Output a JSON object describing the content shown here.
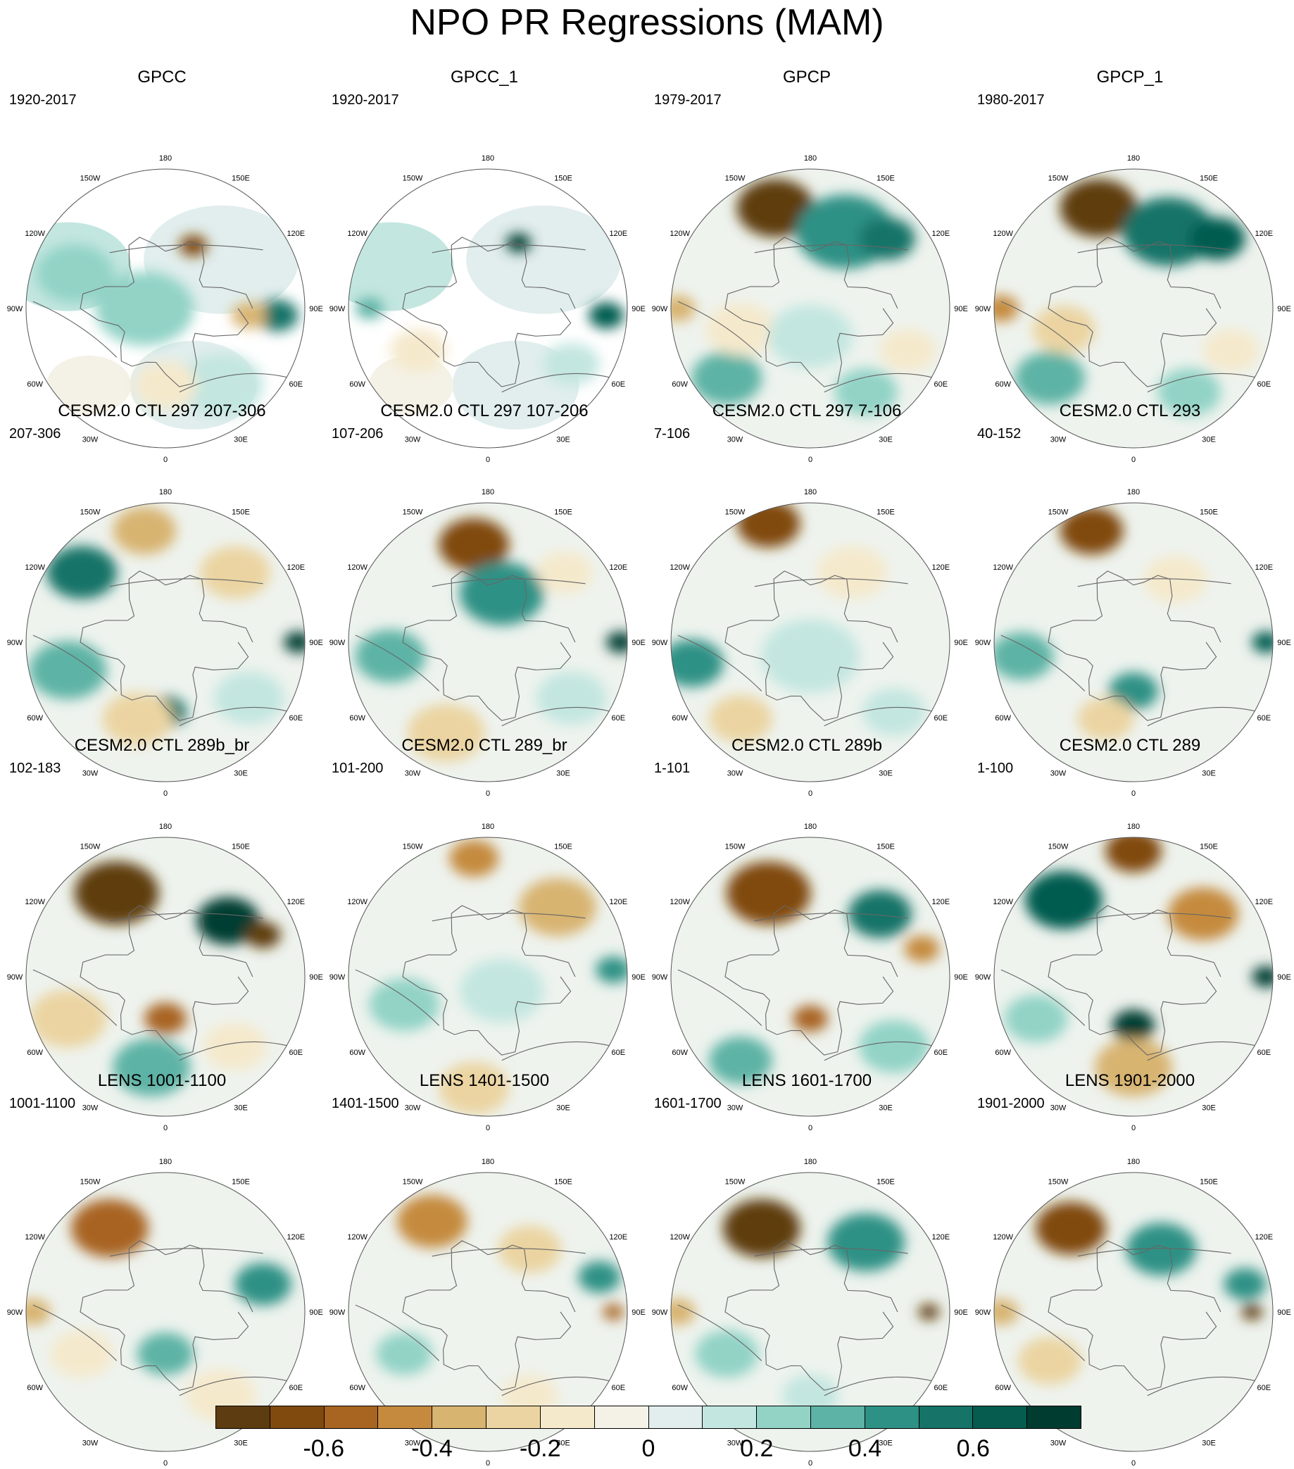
{
  "title": "NPO PR Regressions (MAM)",
  "lon_labels": [
    "180",
    "150E",
    "120E",
    "90E",
    "60E",
    "30E",
    "0",
    "30W",
    "60W",
    "90W",
    "120W",
    "150W"
  ],
  "panels": [
    {
      "title": "GPCC",
      "period": "1920-2017",
      "mask": true,
      "blobs": [
        [
          0.2,
          -0.45,
          20,
          -0.7
        ],
        [
          -0.15,
          0.0,
          70,
          0.25
        ],
        [
          -0.65,
          -0.25,
          55,
          0.2
        ],
        [
          0.8,
          0.05,
          30,
          0.5
        ],
        [
          0.6,
          0.05,
          25,
          -0.35
        ],
        [
          0.4,
          0.55,
          60,
          0.15
        ],
        [
          0.0,
          0.55,
          45,
          -0.15
        ]
      ]
    },
    {
      "title": "GPCC_1",
      "period": "1920-2017",
      "mask": true,
      "blobs": [
        [
          0.22,
          -0.47,
          18,
          0.75
        ],
        [
          0.85,
          0.05,
          25,
          0.6
        ],
        [
          -0.85,
          0.0,
          20,
          0.3
        ],
        [
          0.6,
          0.4,
          40,
          0.15
        ],
        [
          -0.5,
          0.3,
          40,
          -0.15
        ]
      ]
    },
    {
      "title": "GPCP",
      "period": "1979-2017",
      "mask": false,
      "blobs": [
        [
          -0.25,
          -0.72,
          55,
          -0.75
        ],
        [
          0.25,
          -0.55,
          70,
          0.45
        ],
        [
          0.55,
          -0.5,
          40,
          0.55
        ],
        [
          -0.6,
          0.5,
          50,
          0.3
        ],
        [
          -0.95,
          0.0,
          25,
          -0.4
        ],
        [
          -0.5,
          0.15,
          50,
          -0.2
        ],
        [
          0.4,
          0.6,
          45,
          0.2
        ],
        [
          0.7,
          0.3,
          40,
          -0.15
        ],
        [
          0.0,
          0.2,
          60,
          0.15
        ]
      ]
    },
    {
      "title": "GPCP_1",
      "period": "1980-2017",
      "mask": false,
      "blobs": [
        [
          -0.25,
          -0.72,
          55,
          -0.8
        ],
        [
          0.25,
          -0.55,
          65,
          0.5
        ],
        [
          0.6,
          -0.5,
          40,
          0.65
        ],
        [
          -0.6,
          0.5,
          50,
          0.3
        ],
        [
          -0.95,
          0.0,
          25,
          -0.45
        ],
        [
          -0.5,
          0.15,
          45,
          -0.25
        ],
        [
          0.4,
          0.6,
          45,
          0.2
        ],
        [
          0.7,
          0.3,
          40,
          -0.15
        ]
      ]
    },
    {
      "title": "CESM2.0 CTL 297 207-306",
      "period": "207-306",
      "mask": false,
      "blobs": [
        [
          -0.6,
          -0.5,
          50,
          0.55
        ],
        [
          -0.15,
          -0.8,
          45,
          -0.4
        ],
        [
          0.5,
          -0.5,
          50,
          -0.3
        ],
        [
          0.95,
          0.0,
          20,
          0.7
        ],
        [
          0.0,
          0.5,
          30,
          0.5
        ],
        [
          -0.2,
          0.55,
          50,
          -0.3
        ],
        [
          -0.7,
          0.2,
          55,
          0.3
        ],
        [
          0.6,
          0.4,
          50,
          0.15
        ]
      ]
    },
    {
      "title": "CESM2.0 CTL 297 107-206",
      "period": "107-206",
      "mask": false,
      "blobs": [
        [
          -0.1,
          -0.7,
          50,
          -0.65
        ],
        [
          0.1,
          -0.35,
          60,
          0.45
        ],
        [
          0.95,
          0.0,
          20,
          0.75
        ],
        [
          -0.3,
          0.65,
          55,
          -0.3
        ],
        [
          -0.7,
          0.1,
          50,
          0.3
        ],
        [
          0.6,
          0.4,
          50,
          0.15
        ],
        [
          0.55,
          -0.5,
          40,
          -0.2
        ]
      ]
    },
    {
      "title": "CESM2.0 CTL 297 7-106",
      "period": "7-106",
      "mask": false,
      "blobs": [
        [
          -0.3,
          -0.85,
          45,
          -0.65
        ],
        [
          0.3,
          -0.5,
          50,
          -0.2
        ],
        [
          -0.85,
          0.15,
          45,
          0.4
        ],
        [
          -0.5,
          0.55,
          45,
          -0.25
        ],
        [
          0.0,
          0.1,
          70,
          0.15
        ],
        [
          0.6,
          0.5,
          45,
          0.15
        ]
      ]
    },
    {
      "title": "CESM2.0 CTL 293",
      "period": "40-152",
      "mask": false,
      "blobs": [
        [
          -0.3,
          -0.8,
          45,
          -0.7
        ],
        [
          0.95,
          0.0,
          20,
          0.65
        ],
        [
          -0.8,
          0.1,
          45,
          0.35
        ],
        [
          0.0,
          0.35,
          35,
          0.45
        ],
        [
          0.3,
          -0.45,
          45,
          -0.2
        ],
        [
          -0.2,
          0.55,
          40,
          -0.25
        ]
      ]
    },
    {
      "title": "CESM2.0 CTL 289b_br",
      "period": "102-183",
      "mask": false,
      "blobs": [
        [
          -0.35,
          -0.6,
          60,
          -0.75
        ],
        [
          0.45,
          -0.4,
          45,
          0.75
        ],
        [
          0.7,
          -0.3,
          25,
          -0.8
        ],
        [
          0.0,
          0.3,
          30,
          -0.55
        ],
        [
          -0.7,
          0.3,
          55,
          -0.25
        ],
        [
          -0.1,
          0.65,
          55,
          0.35
        ],
        [
          0.5,
          0.5,
          45,
          -0.15
        ]
      ]
    },
    {
      "title": "CESM2.0 CTL 289_br",
      "period": "101-200",
      "mask": false,
      "blobs": [
        [
          -0.1,
          -0.85,
          35,
          -0.5
        ],
        [
          0.5,
          -0.5,
          55,
          -0.35
        ],
        [
          -0.1,
          0.8,
          50,
          -0.3
        ],
        [
          -0.6,
          0.2,
          50,
          0.25
        ],
        [
          0.9,
          -0.05,
          25,
          0.45
        ],
        [
          0.1,
          0.1,
          60,
          0.15
        ]
      ]
    },
    {
      "title": "CESM2.0 CTL 289b",
      "period": "1-101",
      "mask": false,
      "blobs": [
        [
          -0.3,
          -0.6,
          60,
          -0.7
        ],
        [
          0.5,
          -0.45,
          45,
          0.55
        ],
        [
          0.8,
          -0.2,
          25,
          -0.45
        ],
        [
          0.0,
          0.3,
          25,
          -0.6
        ],
        [
          -0.5,
          0.6,
          45,
          0.35
        ],
        [
          0.6,
          0.5,
          50,
          0.2
        ]
      ]
    },
    {
      "title": "CESM2.0 CTL 289",
      "period": "1-100",
      "mask": false,
      "blobs": [
        [
          -0.5,
          -0.55,
          55,
          0.6
        ],
        [
          0.0,
          -0.9,
          40,
          -0.7
        ],
        [
          0.5,
          -0.45,
          50,
          -0.5
        ],
        [
          0.95,
          0.0,
          20,
          0.8
        ],
        [
          0.0,
          0.35,
          30,
          0.75
        ],
        [
          0.0,
          0.65,
          55,
          -0.35
        ],
        [
          -0.7,
          0.3,
          45,
          0.2
        ]
      ]
    },
    {
      "title": "LENS 1001-1100",
      "period": "1001-1100",
      "mask": false,
      "blobs": [
        [
          -0.4,
          -0.6,
          55,
          -0.55
        ],
        [
          0.7,
          -0.2,
          40,
          0.4
        ],
        [
          -0.95,
          0.0,
          25,
          -0.35
        ],
        [
          -0.6,
          0.3,
          45,
          -0.2
        ],
        [
          0.0,
          0.3,
          40,
          0.3
        ],
        [
          0.4,
          0.6,
          50,
          -0.15
        ]
      ]
    },
    {
      "title": "LENS 1401-1500",
      "period": "1401-1500",
      "mask": false,
      "blobs": [
        [
          -0.4,
          -0.65,
          50,
          -0.5
        ],
        [
          0.3,
          -0.45,
          45,
          -0.25
        ],
        [
          0.8,
          -0.25,
          30,
          0.45
        ],
        [
          0.9,
          0.0,
          15,
          -0.6
        ],
        [
          -0.6,
          0.3,
          40,
          0.2
        ],
        [
          0.3,
          0.6,
          40,
          -0.15
        ]
      ]
    },
    {
      "title": "LENS 1601-1700",
      "period": "1601-1700",
      "mask": false,
      "blobs": [
        [
          -0.35,
          -0.6,
          55,
          -0.75
        ],
        [
          0.4,
          -0.5,
          55,
          0.4
        ],
        [
          0.85,
          0.0,
          15,
          -0.8
        ],
        [
          -0.95,
          0.0,
          25,
          -0.4
        ],
        [
          -0.6,
          0.3,
          45,
          0.2
        ],
        [
          0.0,
          0.6,
          40,
          0.15
        ]
      ]
    },
    {
      "title": "LENS 1901-2000",
      "period": "1901-2000",
      "mask": false,
      "blobs": [
        [
          -0.45,
          -0.6,
          50,
          -0.65
        ],
        [
          0.2,
          -0.45,
          50,
          0.4
        ],
        [
          0.8,
          -0.2,
          30,
          0.45
        ],
        [
          0.85,
          0.0,
          15,
          -0.8
        ],
        [
          -0.95,
          0.0,
          25,
          -0.4
        ],
        [
          -0.6,
          0.35,
          45,
          -0.25
        ]
      ]
    }
  ],
  "colorbar": {
    "colors": [
      "#5e3c11",
      "#804a0f",
      "#a86421",
      "#c58a3e",
      "#d8b471",
      "#ebd4a1",
      "#f5e9cc",
      "#f4f1e6",
      "#e1eeed",
      "#c3e6e0",
      "#92d3c6",
      "#5db3a5",
      "#2d9185",
      "#167368",
      "#055c4f",
      "#003c30"
    ],
    "tick_values": [
      -0.6,
      -0.4,
      -0.2,
      0,
      0.2,
      0.4,
      0.6
    ],
    "tick_labels": [
      "-0.6",
      "-0.4",
      "-0.2",
      "0",
      "0.2",
      "0.4",
      "0.6"
    ],
    "levels": [
      -0.7,
      -0.6,
      -0.5,
      -0.4,
      -0.3,
      -0.2,
      -0.1,
      0,
      0.1,
      0.2,
      0.3,
      0.4,
      0.5,
      0.6,
      0.7
    ]
  }
}
